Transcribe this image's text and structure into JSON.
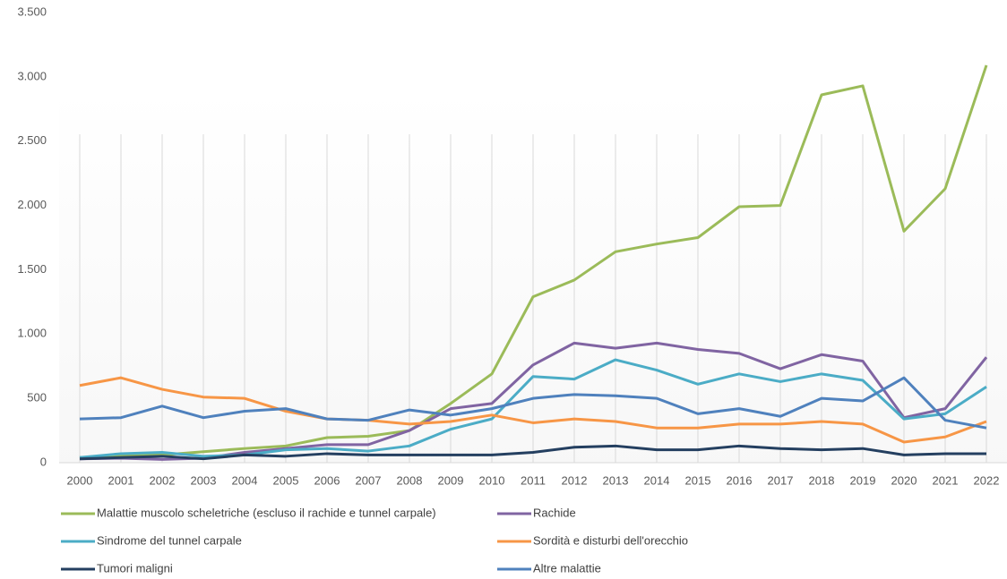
{
  "chart_data": {
    "type": "line",
    "categories": [
      "2000",
      "2001",
      "2002",
      "2003",
      "2004",
      "2005",
      "2006",
      "2007",
      "2008",
      "2009",
      "2010",
      "2011",
      "2012",
      "2013",
      "2014",
      "2015",
      "2016",
      "2017",
      "2018",
      "2019",
      "2020",
      "2021",
      "2022"
    ],
    "series": [
      {
        "name": "Malattie muscolo scheletriche (escluso il rachide e tunnel carpale)",
        "color": "#9bbb59",
        "values": [
          40,
          55,
          60,
          85,
          110,
          130,
          195,
          205,
          250,
          460,
          690,
          1290,
          1420,
          1640,
          1700,
          1750,
          1990,
          2000,
          2860,
          2930,
          1800,
          2130,
          3090
        ]
      },
      {
        "name": "Rachide",
        "color": "#8064a2",
        "values": [
          30,
          35,
          25,
          35,
          80,
          110,
          140,
          140,
          250,
          420,
          460,
          760,
          930,
          890,
          930,
          880,
          850,
          730,
          840,
          790,
          350,
          420,
          820
        ]
      },
      {
        "name": "Sindrome del tunnel carpale",
        "color": "#4bacc6",
        "values": [
          40,
          70,
          80,
          50,
          60,
          100,
          110,
          90,
          130,
          260,
          340,
          670,
          650,
          800,
          720,
          610,
          690,
          630,
          690,
          640,
          340,
          380,
          590
        ]
      },
      {
        "name": "Sordità e disturbi dell'orecchio",
        "color": "#f79646",
        "values": [
          600,
          660,
          570,
          510,
          500,
          400,
          340,
          330,
          300,
          320,
          370,
          310,
          340,
          320,
          270,
          270,
          300,
          300,
          320,
          300,
          160,
          200,
          320
        ]
      },
      {
        "name": "Tumori maligni",
        "color": "#243f60",
        "values": [
          30,
          40,
          50,
          30,
          60,
          50,
          70,
          60,
          60,
          60,
          60,
          80,
          120,
          130,
          100,
          100,
          130,
          110,
          100,
          110,
          60,
          70,
          70
        ]
      },
      {
        "name": "Altre malattie",
        "color": "#4f81bd",
        "values": [
          340,
          350,
          440,
          350,
          400,
          420,
          340,
          330,
          410,
          370,
          420,
          500,
          530,
          520,
          500,
          380,
          420,
          360,
          500,
          480,
          660,
          330,
          270
        ]
      }
    ],
    "ylim": [
      0,
      3500
    ],
    "yticks": [
      0,
      {
        "value": 500,
        "label": "500"
      },
      {
        "value": 1000,
        "label": "1.000"
      },
      {
        "value": 1500,
        "label": "1.500"
      },
      {
        "value": 2000,
        "label": "2.000"
      },
      {
        "value": 2500,
        "label": "2.500"
      },
      {
        "value": 3000,
        "label": "3.000"
      },
      {
        "value": 3500,
        "label": "3.500"
      }
    ],
    "grid": false,
    "legend": "bottom"
  }
}
